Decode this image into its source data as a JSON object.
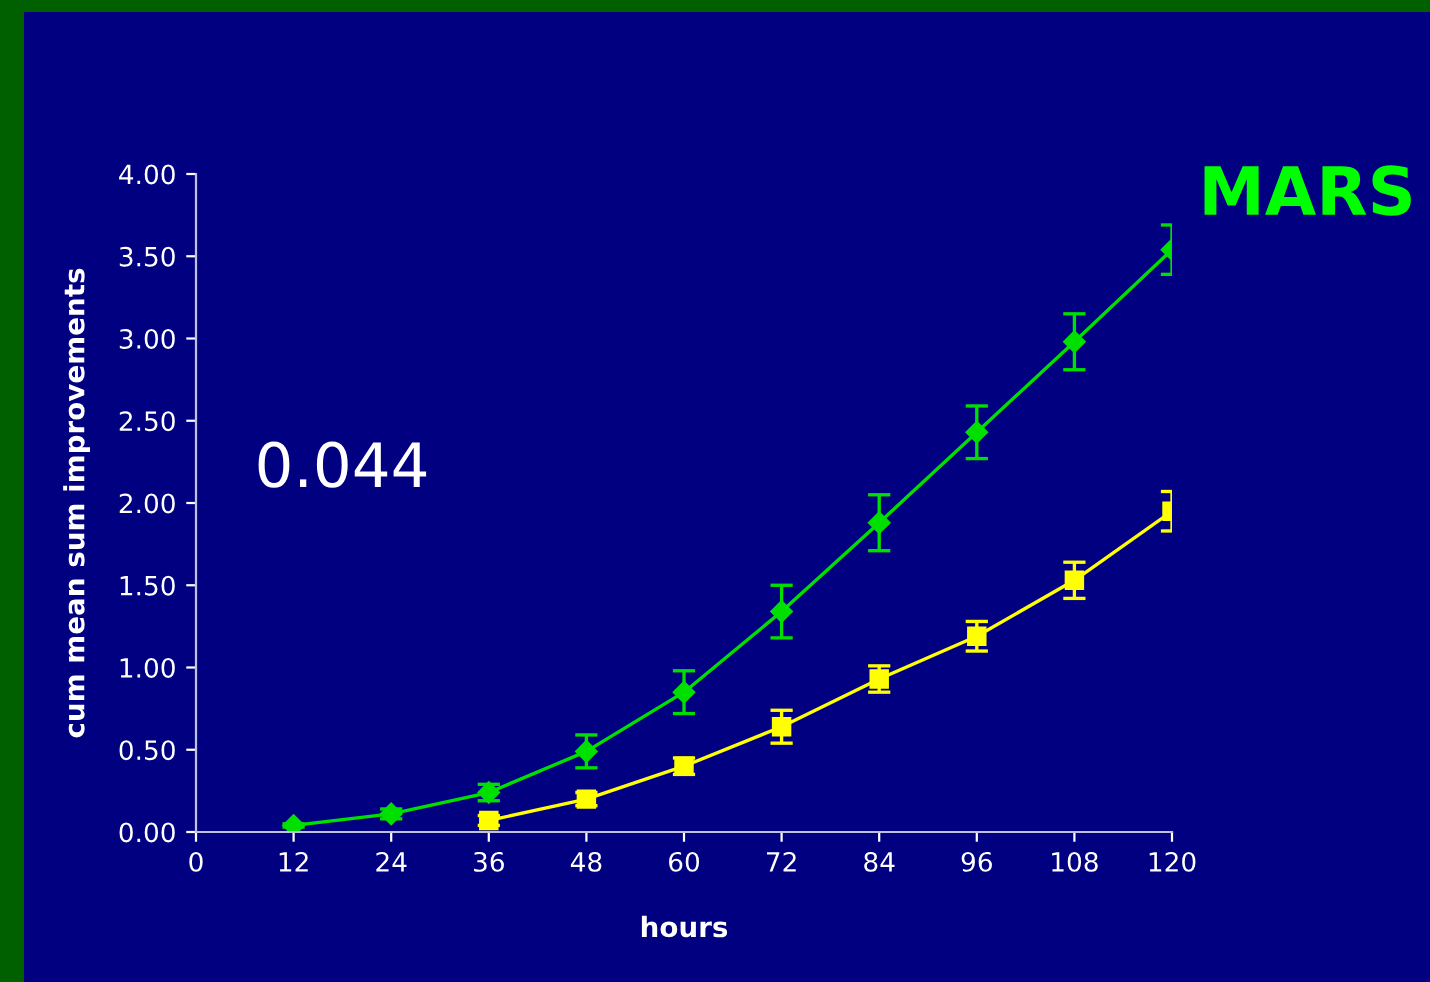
{
  "chart_data": {
    "type": "line",
    "xlabel": "hours",
    "ylabel": "cum mean sum improvements",
    "annotations": [
      "MARS",
      "0.044"
    ],
    "xlim": [
      0,
      120
    ],
    "xticks": [
      0,
      12,
      24,
      36,
      48,
      60,
      72,
      84,
      96,
      108,
      120
    ],
    "ylim": [
      0,
      4
    ],
    "yticks": [
      {
        "value": 0,
        "label": "0.00"
      },
      {
        "value": 0.5,
        "label": "0.50"
      },
      {
        "value": 1,
        "label": "1.00"
      },
      {
        "value": 1.5,
        "label": "1.50"
      },
      {
        "value": 2,
        "label": "2.00"
      },
      {
        "value": 2.5,
        "label": "2.50"
      },
      {
        "value": 3,
        "label": "3.00"
      },
      {
        "value": 3.5,
        "label": "3.50"
      },
      {
        "value": 4,
        "label": "4.00"
      }
    ],
    "grid": false,
    "legend": false,
    "series": [
      {
        "color": "#00e000",
        "marker": "diamond",
        "x": [
          12,
          24,
          36,
          48,
          60,
          72,
          84,
          96,
          108,
          120
        ],
        "values": [
          0.04,
          0.11,
          0.24,
          0.49,
          0.85,
          1.34,
          1.88,
          2.43,
          2.98,
          3.54
        ],
        "errors": [
          0.01,
          0.03,
          0.05,
          0.1,
          0.13,
          0.16,
          0.17,
          0.16,
          0.17,
          0.15
        ]
      },
      {
        "color": "#ffff00",
        "marker": "square",
        "x": [
          36,
          48,
          60,
          72,
          84,
          96,
          108,
          120
        ],
        "values": [
          0.07,
          0.2,
          0.4,
          0.64,
          0.93,
          1.19,
          1.53,
          1.95
        ],
        "errors": [
          0.03,
          0.04,
          0.05,
          0.1,
          0.08,
          0.09,
          0.11,
          0.12
        ]
      }
    ]
  }
}
